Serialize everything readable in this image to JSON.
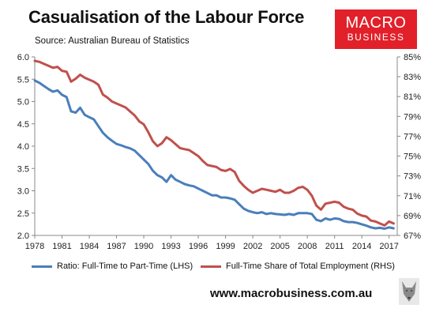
{
  "title": "Casualisation of the Labour Force",
  "source": "Source: Australian Bureau of Statistics",
  "logo": {
    "line1": "MACRO",
    "line2": "BUSINESS"
  },
  "url": "www.macrobusiness.com.au",
  "chart_data": {
    "type": "line",
    "title": "Casualisation of the Labour Force",
    "x_ticks": [
      "1978",
      "1981",
      "1984",
      "1987",
      "1990",
      "1993",
      "1996",
      "1999",
      "2002",
      "2005",
      "2008",
      "2011",
      "2014",
      "2017"
    ],
    "y_left": {
      "range": [
        2.0,
        6.0
      ],
      "ticks": [
        "2.0",
        "2.5",
        "3.0",
        "3.5",
        "4.0",
        "4.5",
        "5.0",
        "5.5",
        "6.0"
      ]
    },
    "y_right": {
      "range": [
        67,
        85
      ],
      "ticks": [
        "67%",
        "69%",
        "71%",
        "73%",
        "75%",
        "77%",
        "79%",
        "81%",
        "83%",
        "85%"
      ]
    },
    "grid": false,
    "legend_position": "bottom",
    "series": [
      {
        "name": "Ratio: Full-Time to Part-Time (LHS)",
        "axis": "left",
        "color": "#4a7ebb",
        "x": [
          1978,
          1978.5,
          1979,
          1979.5,
          1980,
          1980.5,
          1981,
          1981.5,
          1982,
          1982.5,
          1983,
          1983.5,
          1984,
          1984.5,
          1985,
          1985.5,
          1986,
          1986.5,
          1987,
          1987.5,
          1988,
          1988.5,
          1989,
          1989.5,
          1990,
          1990.5,
          1991,
          1991.5,
          1992,
          1992.5,
          1993,
          1993.5,
          1994,
          1994.5,
          1995,
          1995.5,
          1996,
          1996.5,
          1997,
          1997.5,
          1998,
          1998.5,
          1999,
          1999.5,
          2000,
          2000.5,
          2001,
          2001.5,
          2002,
          2002.5,
          2003,
          2003.5,
          2004,
          2004.5,
          2005,
          2005.5,
          2006,
          2006.5,
          2007,
          2007.5,
          2008,
          2008.5,
          2009,
          2009.5,
          2010,
          2010.5,
          2011,
          2011.5,
          2012,
          2012.5,
          2013,
          2013.5,
          2014,
          2014.5,
          2015,
          2015.5,
          2016,
          2016.5,
          2017,
          2017.5
        ],
        "values": [
          5.47,
          5.42,
          5.35,
          5.28,
          5.22,
          5.25,
          5.15,
          5.1,
          4.78,
          4.75,
          4.86,
          4.7,
          4.65,
          4.6,
          4.45,
          4.3,
          4.2,
          4.12,
          4.05,
          4.02,
          3.98,
          3.95,
          3.9,
          3.8,
          3.7,
          3.6,
          3.45,
          3.35,
          3.3,
          3.2,
          3.35,
          3.25,
          3.2,
          3.15,
          3.12,
          3.1,
          3.05,
          3.0,
          2.95,
          2.9,
          2.9,
          2.85,
          2.85,
          2.83,
          2.8,
          2.7,
          2.6,
          2.55,
          2.52,
          2.5,
          2.52,
          2.48,
          2.5,
          2.48,
          2.47,
          2.46,
          2.48,
          2.46,
          2.5,
          2.5,
          2.5,
          2.48,
          2.35,
          2.32,
          2.38,
          2.35,
          2.38,
          2.37,
          2.32,
          2.3,
          2.3,
          2.28,
          2.25,
          2.22,
          2.18,
          2.16,
          2.17,
          2.15,
          2.18,
          2.16
        ]
      },
      {
        "name": "Full-Time Share of Total Employment (RHS)",
        "axis": "right",
        "color": "#c0504d",
        "x": [
          1978,
          1978.5,
          1979,
          1979.5,
          1980,
          1980.5,
          1981,
          1981.5,
          1982,
          1982.5,
          1983,
          1983.5,
          1984,
          1984.5,
          1985,
          1985.5,
          1986,
          1986.5,
          1987,
          1987.5,
          1988,
          1988.5,
          1989,
          1989.5,
          1990,
          1990.5,
          1991,
          1991.5,
          1992,
          1992.5,
          1993,
          1993.5,
          1994,
          1994.5,
          1995,
          1995.5,
          1996,
          1996.5,
          1997,
          1997.5,
          1998,
          1998.5,
          1999,
          1999.5,
          2000,
          2000.5,
          2001,
          2001.5,
          2002,
          2002.5,
          2003,
          2003.5,
          2004,
          2004.5,
          2005,
          2005.5,
          2006,
          2006.5,
          2007,
          2007.5,
          2008,
          2008.5,
          2009,
          2009.5,
          2010,
          2010.5,
          2011,
          2011.5,
          2012,
          2012.5,
          2013,
          2013.5,
          2014,
          2014.5,
          2015,
          2015.5,
          2016,
          2016.5,
          2017,
          2017.5
        ],
        "values": [
          84.6,
          84.5,
          84.3,
          84.1,
          83.9,
          84.0,
          83.6,
          83.5,
          82.5,
          82.8,
          83.2,
          82.9,
          82.7,
          82.5,
          82.2,
          81.2,
          80.9,
          80.5,
          80.3,
          80.1,
          79.9,
          79.5,
          79.1,
          78.5,
          78.2,
          77.4,
          76.5,
          76.0,
          76.3,
          76.9,
          76.6,
          76.2,
          75.8,
          75.7,
          75.6,
          75.3,
          75.0,
          74.5,
          74.1,
          74.0,
          73.9,
          73.6,
          73.5,
          73.7,
          73.4,
          72.5,
          72.0,
          71.6,
          71.3,
          71.5,
          71.7,
          71.6,
          71.5,
          71.4,
          71.6,
          71.3,
          71.3,
          71.5,
          71.8,
          71.9,
          71.6,
          71.0,
          70.0,
          69.6,
          70.2,
          70.3,
          70.4,
          70.3,
          69.9,
          69.7,
          69.6,
          69.2,
          69.0,
          68.9,
          68.5,
          68.4,
          68.2,
          68.0,
          68.4,
          68.2
        ]
      }
    ]
  }
}
